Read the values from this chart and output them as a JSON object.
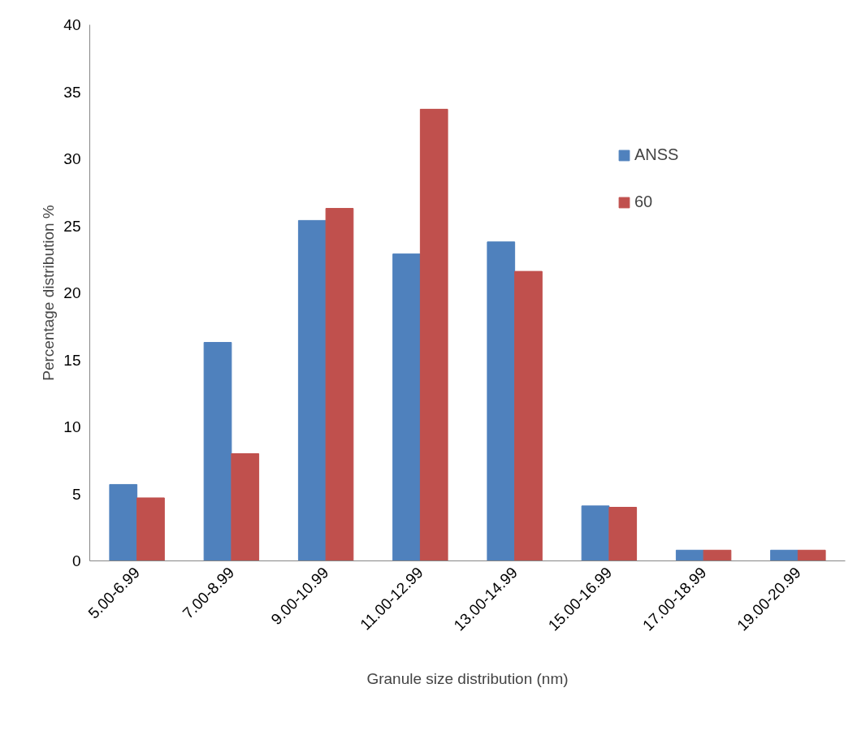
{
  "chart_data": {
    "type": "bar",
    "xlabel": "Granule size distribution (nm)",
    "ylabel": "Percentage distribution %",
    "categories": [
      "5.00-6.99",
      "7.00-8.99",
      "9.00-10.99",
      "11.00-12.99",
      "13.00-14.99",
      "15.00-16.99",
      "17.00-18.99",
      "19.00-20.99"
    ],
    "series": [
      {
        "name": "ANSS",
        "color": "#4f81bd",
        "values": [
          5.7,
          16.3,
          25.4,
          22.9,
          23.8,
          4.1,
          0.8,
          0.8
        ]
      },
      {
        "name": "60",
        "color": "#c0504d",
        "values": [
          4.7,
          8.0,
          26.3,
          33.7,
          21.6,
          4.0,
          0.8,
          0.8
        ]
      }
    ],
    "ylim": [
      0,
      40
    ],
    "yticks": [
      0,
      5,
      10,
      15,
      20,
      25,
      30,
      35,
      40
    ],
    "grid": false,
    "legend": "top right"
  }
}
